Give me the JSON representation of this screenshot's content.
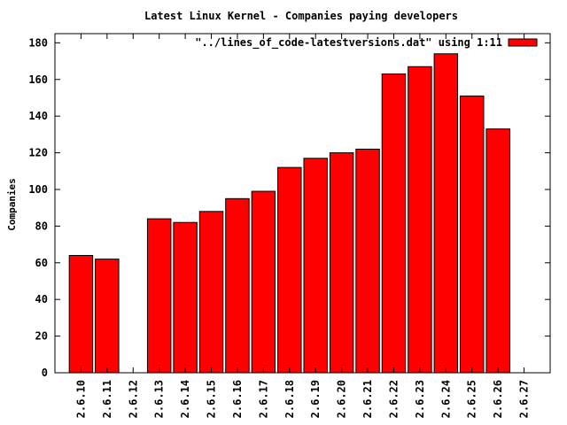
{
  "chart_data": {
    "type": "bar",
    "title": "Latest Linux Kernel - Companies paying developers",
    "xlabel": "",
    "ylabel": "Companies",
    "categories": [
      "2.6.10",
      "2.6.11",
      "2.6.12",
      "2.6.13",
      "2.6.14",
      "2.6.15",
      "2.6.16",
      "2.6.17",
      "2.6.18",
      "2.6.19",
      "2.6.20",
      "2.6.21",
      "2.6.22",
      "2.6.23",
      "2.6.24",
      "2.6.25",
      "2.6.26",
      "2.6.27"
    ],
    "series": [
      {
        "name": "\"../lines_of_code-latestversions.dat\" using 1:11",
        "values": [
          64,
          62,
          null,
          84,
          82,
          88,
          95,
          99,
          112,
          117,
          120,
          122,
          163,
          167,
          174,
          151,
          133,
          null
        ]
      }
    ],
    "yticks": [
      0,
      20,
      40,
      60,
      80,
      100,
      120,
      140,
      160,
      180
    ],
    "ylim": [
      0,
      185
    ],
    "legend": "top-right",
    "grid": false,
    "bar_color": "#ff0000",
    "bar_edge_color": "#000000"
  }
}
